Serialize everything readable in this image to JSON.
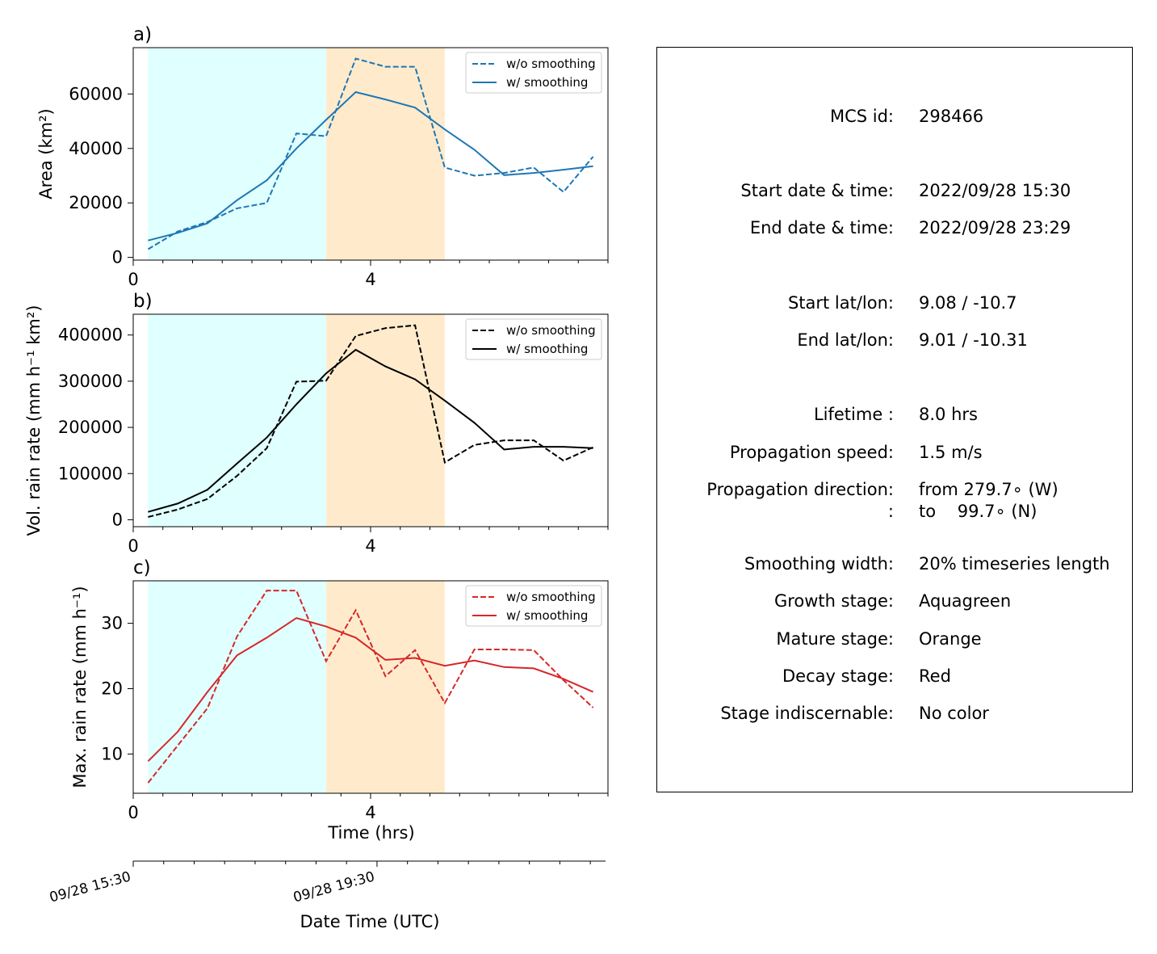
{
  "chart_data": [
    {
      "panel": "a)",
      "type": "line",
      "ylabel": "Area  (km²)",
      "xlim": [
        0,
        8
      ],
      "ylim": [
        -1000,
        77000
      ],
      "yticks": [
        0,
        20000,
        40000,
        60000
      ],
      "xticks": [
        0,
        4
      ],
      "color": "#1f77b4",
      "legend": {
        "position": "top-right",
        "labels": [
          "w/o smoothing",
          "w/ smoothing"
        ]
      },
      "stages": [
        {
          "name": "Growth",
          "x0": 0.25,
          "x1": 3.25,
          "color": "#e0ffff"
        },
        {
          "name": "Mature",
          "x0": 3.25,
          "x1": 5.25,
          "color": "#ffebcc"
        }
      ],
      "series": [
        {
          "name": "w/o smoothing",
          "dashed": true,
          "x": [
            0.25,
            0.75,
            1.25,
            1.75,
            2.25,
            2.75,
            3.25,
            3.75,
            4.25,
            4.75,
            5.25,
            5.75,
            6.25,
            6.75,
            7.25,
            7.75
          ],
          "y": [
            3000,
            9500,
            13000,
            18000,
            20000,
            45500,
            44500,
            73000,
            70000,
            70000,
            33000,
            30000,
            31000,
            33000,
            24000,
            37000
          ]
        },
        {
          "name": "w/ smoothing",
          "dashed": false,
          "x": [
            0.25,
            0.75,
            1.25,
            1.75,
            2.25,
            2.75,
            3.25,
            3.75,
            4.25,
            4.75,
            5.25,
            5.75,
            6.25,
            6.75,
            7.25,
            7.75
          ],
          "y": [
            6200,
            9000,
            12500,
            21000,
            28300,
            40000,
            50500,
            60700,
            58000,
            55000,
            47000,
            39500,
            30200,
            31000,
            32200,
            33500
          ]
        }
      ]
    },
    {
      "panel": "b)",
      "type": "line",
      "ylabel": "Vol. rain rate (mm h⁻¹ km²)",
      "xlim": [
        0,
        8
      ],
      "ylim": [
        -15000,
        445000
      ],
      "yticks": [
        0,
        100000,
        200000,
        300000,
        400000
      ],
      "xticks": [
        0,
        4
      ],
      "color": "#000000",
      "legend": {
        "position": "top-right",
        "labels": [
          "w/o smoothing",
          "w/ smoothing"
        ]
      },
      "stages": [
        {
          "name": "Growth",
          "x0": 0.25,
          "x1": 3.25,
          "color": "#e0ffff"
        },
        {
          "name": "Mature",
          "x0": 3.25,
          "x1": 5.25,
          "color": "#ffebcc"
        }
      ],
      "series": [
        {
          "name": "w/o smoothing",
          "dashed": true,
          "x": [
            0.25,
            0.75,
            1.25,
            1.75,
            2.25,
            2.75,
            3.25,
            3.75,
            4.25,
            4.75,
            5.25,
            5.75,
            6.25,
            6.75,
            7.25,
            7.75
          ],
          "y": [
            6000,
            22000,
            45000,
            95000,
            155000,
            299000,
            301000,
            398000,
            415000,
            421000,
            124000,
            162000,
            172000,
            172000,
            128000,
            157000
          ]
        },
        {
          "name": "w/ smoothing",
          "dashed": false,
          "x": [
            0.25,
            0.75,
            1.25,
            1.75,
            2.25,
            2.75,
            3.25,
            3.75,
            4.25,
            4.75,
            5.25,
            5.75,
            6.25,
            6.75,
            7.25,
            7.75
          ],
          "y": [
            17000,
            35000,
            65000,
            122000,
            178000,
            250000,
            317000,
            368000,
            332000,
            304000,
            258000,
            210000,
            152000,
            158000,
            158000,
            155000
          ]
        }
      ]
    },
    {
      "panel": "c)",
      "type": "line",
      "ylabel": "Max. rain rate  (mm h⁻¹)",
      "xlim": [
        0,
        8
      ],
      "ylim": [
        4,
        36.5
      ],
      "yticks": [
        10,
        20,
        30
      ],
      "xticks": [
        0,
        4
      ],
      "xlabel": "Time (hrs)",
      "color": "#d62728",
      "legend": {
        "position": "top-right",
        "labels": [
          "w/o smoothing",
          "w/ smoothing"
        ]
      },
      "stages": [
        {
          "name": "Growth",
          "x0": 0.25,
          "x1": 3.25,
          "color": "#e0ffff"
        },
        {
          "name": "Mature",
          "x0": 3.25,
          "x1": 5.25,
          "color": "#ffebcc"
        }
      ],
      "series": [
        {
          "name": "w/o smoothing",
          "dashed": true,
          "x": [
            0.25,
            0.75,
            1.25,
            1.75,
            2.25,
            2.75,
            3.25,
            3.75,
            4.25,
            4.75,
            5.25,
            5.75,
            6.25,
            6.75,
            7.25,
            7.75
          ],
          "y": [
            5.6,
            11.3,
            17.0,
            28.0,
            35.0,
            35.0,
            24.2,
            32.0,
            21.9,
            25.9,
            17.8,
            26.0,
            26.0,
            25.9,
            21.3,
            17.1
          ]
        },
        {
          "name": "w/ smoothing",
          "dashed": false,
          "x": [
            0.25,
            0.75,
            1.25,
            1.75,
            2.25,
            2.75,
            3.25,
            3.75,
            4.25,
            4.75,
            5.25,
            5.75,
            6.25,
            6.75,
            7.25,
            7.75
          ],
          "y": [
            8.9,
            13.4,
            19.5,
            25.1,
            27.8,
            30.8,
            29.5,
            27.8,
            24.4,
            24.7,
            23.5,
            24.3,
            23.3,
            23.1,
            21.5,
            19.5
          ]
        }
      ]
    }
  ],
  "date_axis": {
    "xlabel": "Date Time (UTC)",
    "ticks": [
      {
        "x": 0,
        "label": "09/28 15:30"
      },
      {
        "x": 4,
        "label": "09/28 19:30"
      }
    ]
  },
  "info": [
    {
      "label": "MCS id:",
      "value": "298466"
    },
    {
      "label": "Start date & time:",
      "value": "2022/09/28 15:30"
    },
    {
      "label": "End date & time:",
      "value": "2022/09/28 23:29"
    },
    {
      "label": "Start lat/lon:",
      "value": "9.08 / -10.7"
    },
    {
      "label": "End lat/lon:",
      "value": "9.01 / -10.31"
    },
    {
      "label": "Lifetime :",
      "value": "8.0 hrs"
    },
    {
      "label": "Propagation speed:",
      "value": "1.5 m/s"
    },
    {
      "label": "Propagation direction:",
      "value": "from 279.7∘ (W)"
    },
    {
      "label": ":",
      "value": "to    99.7∘ (N)"
    },
    {
      "label": "Smoothing width:",
      "value": "20% timeseries length"
    },
    {
      "label": "Growth stage:",
      "value": "Aquagreen"
    },
    {
      "label": "Mature stage:",
      "value": "Orange"
    },
    {
      "label": "Decay stage:",
      "value": "Red"
    },
    {
      "label": "Stage indiscernable:",
      "value": "No color"
    }
  ]
}
